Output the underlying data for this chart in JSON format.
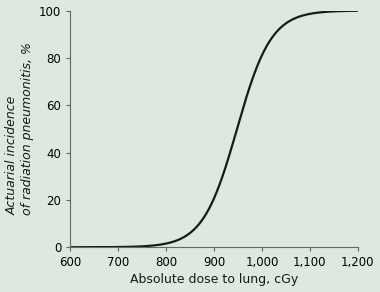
{
  "background_color": "#dde8de",
  "line_color": "#1a1a1a",
  "line_width": 1.6,
  "xlim": [
    600,
    1200
  ],
  "ylim": [
    0,
    100
  ],
  "xticks": [
    600,
    700,
    800,
    900,
    1000,
    1100,
    1200
  ],
  "yticks": [
    0,
    20,
    40,
    60,
    80,
    100
  ],
  "xlabel": "Absolute dose to lung, cGy",
  "ylabel_line1": "Actuarial incidence",
  "ylabel_line2": "of radiation pneumonitis, %",
  "sigmoid_midpoint": 948,
  "sigmoid_steepness": 0.028,
  "sigmoid_max": 100,
  "x_start": 600,
  "x_end": 1200,
  "tick_fontsize": 8.5,
  "xlabel_fontsize": 9,
  "ylabel_fontsize": 9
}
